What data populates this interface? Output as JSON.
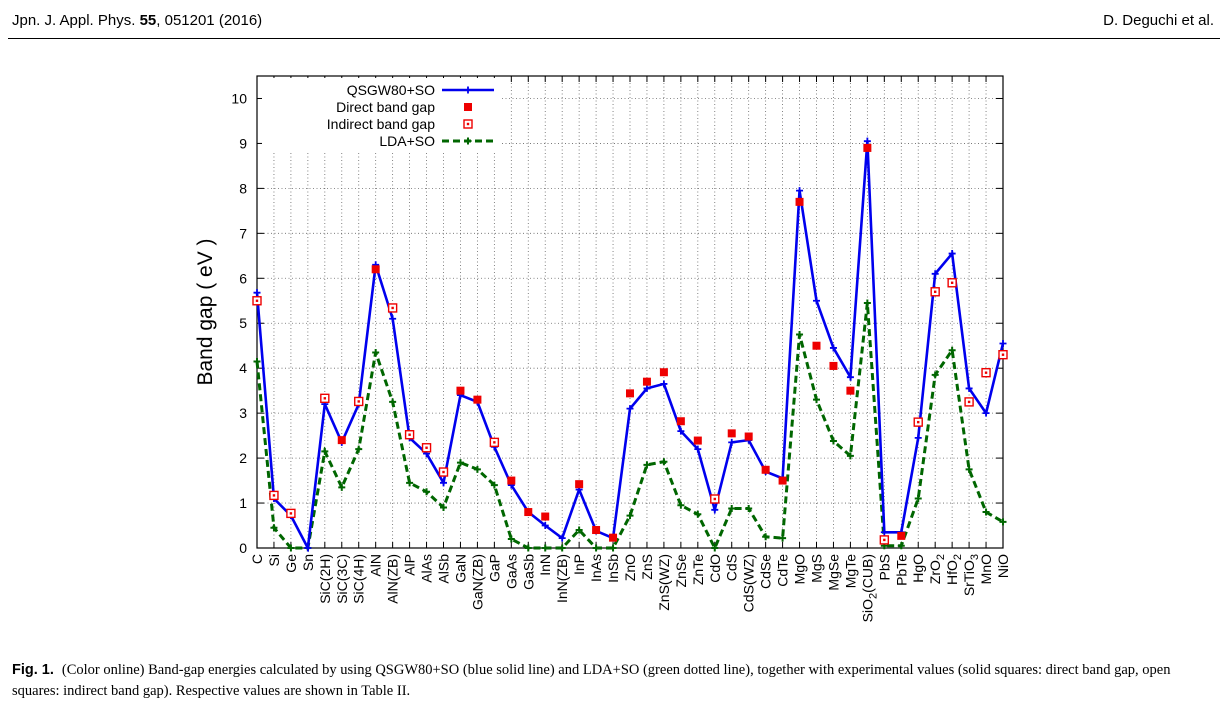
{
  "header": {
    "journal": "Jpn. J. Appl. Phys.",
    "volume": "55",
    "article_info": ", 051201 (2016)",
    "authors": "D. Deguchi et al."
  },
  "caption": {
    "label": "Fig. 1.",
    "text": "(Color online) Band-gap energies calculated by using QSGW80+SO (blue solid line) and LDA+SO (green dotted line), together with experimental values (solid squares: direct band gap, open squares: indirect band gap). Respective values are shown in Table II."
  },
  "colors": {
    "qsgw": "#0000ee",
    "direct": "#ee0000",
    "indirect": "#ee0000",
    "lda": "#006600"
  },
  "chart_data": {
    "type": "line",
    "ylabel": "Band gap ( eV )",
    "ylim": [
      0,
      10.5
    ],
    "yticks": [
      0,
      1,
      2,
      3,
      4,
      5,
      6,
      7,
      8,
      9,
      10
    ],
    "grid": true,
    "legend_position": "top-left",
    "categories": [
      "C",
      "Si",
      "Ge",
      "Sn",
      "SiC(2H)",
      "SiC(3C)",
      "SiC(4H)",
      "AlN",
      "AlN(ZB)",
      "AlP",
      "AlAs",
      "AlSb",
      "GaN",
      "GaN(ZB)",
      "GaP",
      "GaAs",
      "GaSb",
      "InN",
      "InN(ZB)",
      "InP",
      "InAs",
      "InSb",
      "ZnO",
      "ZnS",
      "ZnS(WZ)",
      "ZnSe",
      "ZnTe",
      "CdO",
      "CdS",
      "CdS(WZ)",
      "CdSe",
      "CdTe",
      "MgO",
      "MgS",
      "MgSe",
      "MgTe",
      "SiO2(CUB)",
      "PbS",
      "PbTe",
      "HgO",
      "ZrO2",
      "HfO2",
      "SrTiO3",
      "MnO",
      "NiO"
    ],
    "series": [
      {
        "name": "QSGW80+SO",
        "style": "line",
        "values": [
          5.68,
          1.1,
          0.72,
          0.0,
          3.2,
          2.35,
          3.2,
          6.3,
          5.1,
          2.45,
          2.1,
          1.45,
          3.4,
          3.25,
          2.25,
          1.4,
          0.8,
          0.5,
          0.22,
          1.3,
          0.38,
          0.22,
          3.1,
          3.55,
          3.65,
          2.6,
          2.2,
          0.85,
          2.35,
          2.4,
          1.7,
          1.55,
          7.95,
          5.5,
          4.45,
          3.8,
          9.05,
          0.35,
          0.35,
          2.45,
          6.1,
          6.55,
          3.55,
          3.0,
          4.55
        ]
      },
      {
        "name": "Direct band gap",
        "style": "solid-square",
        "values": [
          null,
          null,
          null,
          null,
          null,
          2.4,
          null,
          6.2,
          null,
          null,
          null,
          null,
          3.5,
          3.3,
          null,
          1.5,
          0.8,
          0.7,
          null,
          1.42,
          0.4,
          0.23,
          3.44,
          3.7,
          3.91,
          2.82,
          2.39,
          null,
          2.55,
          2.48,
          1.74,
          1.5,
          7.7,
          4.5,
          4.05,
          3.5,
          8.9,
          null,
          0.27,
          null,
          null,
          null,
          null,
          null,
          null
        ]
      },
      {
        "name": "Indirect band gap",
        "style": "open-square",
        "values": [
          5.5,
          1.17,
          0.77,
          null,
          3.33,
          null,
          3.26,
          null,
          5.34,
          2.52,
          2.23,
          1.69,
          null,
          null,
          2.35,
          null,
          null,
          null,
          null,
          null,
          null,
          null,
          null,
          null,
          null,
          null,
          null,
          1.09,
          null,
          null,
          null,
          null,
          null,
          null,
          null,
          null,
          null,
          0.18,
          null,
          2.8,
          5.7,
          5.9,
          3.25,
          3.9,
          4.3
        ]
      },
      {
        "name": "LDA+SO",
        "style": "dashed",
        "values": [
          4.15,
          0.45,
          0.0,
          0.0,
          2.15,
          1.35,
          2.2,
          4.35,
          3.25,
          1.45,
          1.25,
          0.9,
          1.9,
          1.75,
          1.4,
          0.2,
          0.0,
          0.0,
          0.0,
          0.4,
          0.0,
          0.0,
          0.72,
          1.85,
          1.92,
          0.95,
          0.75,
          0.0,
          0.88,
          0.88,
          0.25,
          0.22,
          4.75,
          3.3,
          2.38,
          2.05,
          5.45,
          0.05,
          0.05,
          1.1,
          3.85,
          4.4,
          1.75,
          0.8,
          0.58
        ]
      }
    ]
  }
}
